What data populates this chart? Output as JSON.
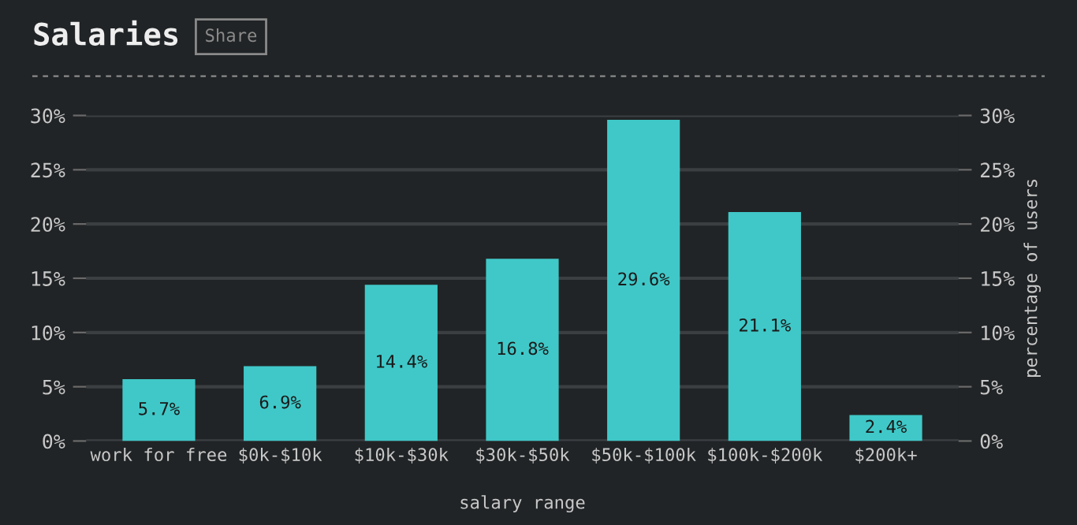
{
  "chart_data": {
    "type": "bar",
    "title": "Salaries",
    "annotations": [
      "Share"
    ],
    "xlabel": "salary range",
    "y2label": "percentage of users",
    "categories": [
      "work for free",
      "$0k-$10k",
      "$10k-$30k",
      "$30k-$50k",
      "$50k-$100k",
      "$100k-$200k",
      "$200k+"
    ],
    "values": [
      5.7,
      6.9,
      14.4,
      16.8,
      29.6,
      21.1,
      2.4
    ],
    "value_labels": [
      "5.7%",
      "6.9%",
      "14.4%",
      "16.8%",
      "29.6%",
      "21.1%",
      "2.4%"
    ],
    "color": "#40c8c8",
    "ylim": [
      0,
      30
    ],
    "yticks": [
      {
        "value": 0,
        "label": "0%"
      },
      {
        "value": 5,
        "label": "5%"
      },
      {
        "value": 10,
        "label": "10%"
      },
      {
        "value": 15,
        "label": "15%"
      },
      {
        "value": 20,
        "label": "20%"
      },
      {
        "value": 25,
        "label": "25%"
      },
      {
        "value": 30,
        "label": "30%"
      }
    ],
    "y2lim": [
      0,
      30
    ],
    "y2ticks": [
      {
        "value": 0,
        "label": "0%"
      },
      {
        "value": 5,
        "label": "5%"
      },
      {
        "value": 10,
        "label": "10%"
      },
      {
        "value": 15,
        "label": "15%"
      },
      {
        "value": 20,
        "label": "20%"
      },
      {
        "value": 25,
        "label": "25%"
      },
      {
        "value": 30,
        "label": "30%"
      }
    ],
    "grid": "y",
    "legend": false
  }
}
